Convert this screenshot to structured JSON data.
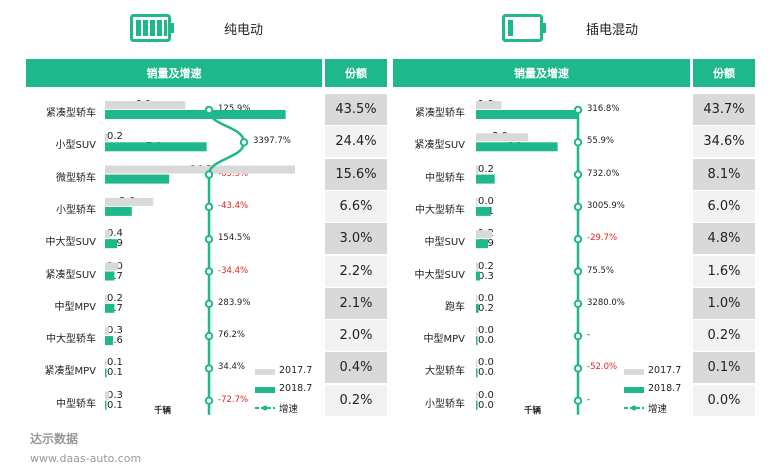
{
  "panels": [
    {
      "id": "bev",
      "title": "纯电动",
      "header_sales": "销量及增速",
      "header_share": "份额",
      "unit": "千辆",
      "legend": [
        "2017.7",
        "2018.7",
        "增速"
      ],
      "chart_data": {
        "type": "bar",
        "categories": [
          "紧凑型轿车",
          "小型SUV",
          "微型轿车",
          "小型轿车",
          "中大型SUV",
          "紧凑型SUV",
          "中型MPV",
          "中大型轿车",
          "紧凑型MPV",
          "中型轿车"
        ],
        "series": [
          {
            "name": "2017.7",
            "values": [
              6.0,
              0.2,
              14.2,
              3.6,
              0.4,
              1.0,
              0.2,
              0.3,
              0.1,
              0.3
            ]
          },
          {
            "name": "2018.7",
            "values": [
              13.5,
              7.6,
              4.8,
              2.0,
              0.9,
              0.7,
              0.7,
              0.6,
              0.1,
              0.1
            ]
          },
          {
            "name": "增速",
            "values": [
              125.9,
              3397.7,
              -65.9,
              -43.4,
              154.5,
              -34.4,
              283.9,
              76.2,
              34.4,
              -72.7
            ]
          }
        ],
        "growth_labels": [
          "125.9%",
          "3397.7%",
          "-65.9%",
          "-43.4%",
          "154.5%",
          "-34.4%",
          "283.9%",
          "76.2%",
          "34.4%",
          "-72.7%"
        ],
        "shares": [
          "43.5%",
          "24.4%",
          "15.6%",
          "6.6%",
          "3.0%",
          "2.2%",
          "2.1%",
          "2.0%",
          "0.4%",
          "0.2%"
        ],
        "bar_max": 14.2
      }
    },
    {
      "id": "phev",
      "title": "插电混动",
      "header_sales": "销量及增速",
      "header_share": "份额",
      "unit": "千辆",
      "legend": [
        "2017.7",
        "2018.7",
        "增速"
      ],
      "chart_data": {
        "type": "bar",
        "categories": [
          "紧凑型轿车",
          "紧凑型SUV",
          "中型轿车",
          "中大型轿车",
          "中型SUV",
          "中大型SUV",
          "跑车",
          "中型MPV",
          "大型轿车",
          "小型轿车"
        ],
        "series": [
          {
            "name": "2017.7",
            "values": [
              1.9,
              3.9,
              0.2,
              0.0,
              1.2,
              0.2,
              0.0,
              0.0,
              0.0,
              0.0
            ]
          },
          {
            "name": "2018.7",
            "values": [
              7.7,
              6.1,
              1.4,
              1.1,
              0.9,
              0.3,
              0.2,
              0.0,
              0.0,
              0.0
            ]
          },
          {
            "name": "增速",
            "values": [
              316.8,
              55.9,
              732.0,
              3005.9,
              -29.7,
              75.5,
              3280.0,
              null,
              -52.0,
              null
            ]
          }
        ],
        "growth_labels": [
          "316.8%",
          "55.9%",
          "732.0%",
          "3005.9%",
          "-29.7%",
          "75.5%",
          "3280.0%",
          "-",
          "-52.0%",
          "-"
        ],
        "shares": [
          "43.7%",
          "34.6%",
          "8.1%",
          "6.0%",
          "4.8%",
          "1.6%",
          "1.0%",
          "0.2%",
          "0.1%",
          "0.0%"
        ],
        "bar_max": 7.7
      }
    }
  ],
  "colors": {
    "accent": "#1fb88d",
    "bar_2017": "#d9d9d9",
    "bar_2018": "#1fb88d",
    "negative": "#e02020",
    "share_dark": "#d9d9d9",
    "share_light": "#f2f2f2"
  },
  "watermark": {
    "name": "达示数据",
    "url": "www.daas-auto.com"
  }
}
